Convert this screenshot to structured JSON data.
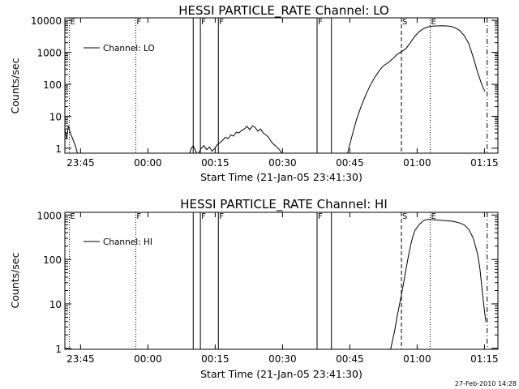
{
  "stamp": "27-Feb-2010 14:28",
  "chart_data": [
    {
      "type": "line",
      "title": "HESSI PARTICLE_RATE Channel: LO",
      "xlabel": "Start Time (21-Jan-05 23:41:30)",
      "ylabel": "Counts/sec",
      "yscale": "log",
      "ylim": [
        0.7,
        12000
      ],
      "yticks": [
        1,
        10,
        100,
        1000,
        10000
      ],
      "ytick_labels": [
        "1",
        "10",
        "100",
        "1000",
        "10000"
      ],
      "x_unit": "minutes after 23:41:30",
      "xlim": [
        0,
        96.5
      ],
      "xticks": [
        3.5,
        18.5,
        33.5,
        48.5,
        63.5,
        78.5,
        93.5
      ],
      "xtick_labels": [
        "23:45",
        "00:00",
        "00:15",
        "00:30",
        "00:45",
        "01:00",
        "01:15"
      ],
      "legend": {
        "label": "Channel: LO",
        "placement": "top-left"
      },
      "markers": [
        {
          "x": 1.0,
          "label": "E",
          "style": "dotted"
        },
        {
          "x": 15.8,
          "label": "F",
          "style": "dotted"
        },
        {
          "x": 28.6,
          "label": "",
          "style": "solid"
        },
        {
          "x": 30.2,
          "label": "F",
          "style": "solid"
        },
        {
          "x": 34.2,
          "label": "F",
          "style": "solid"
        },
        {
          "x": 56.2,
          "label": "F",
          "style": "solid"
        },
        {
          "x": 59.4,
          "label": "",
          "style": "solid"
        },
        {
          "x": 75.0,
          "label": "S",
          "style": "dashed"
        },
        {
          "x": 81.4,
          "label": "E",
          "style": "dotted"
        },
        {
          "x": 94.1,
          "label": "",
          "style": "dashdot"
        }
      ],
      "series": [
        {
          "segments": [
            {
              "x": [
                0.0,
                0.4,
                0.8,
                1.2,
                1.6,
                2.0,
                2.4,
                2.8
              ],
              "y": [
                4.0,
                2.0,
                5.0,
                3.0,
                2.2,
                1.6,
                1.1,
                0.7
              ]
            },
            {
              "x": [
                27.8,
                28.2,
                28.6,
                29.0,
                29.4
              ],
              "y": [
                0.7,
                1.0,
                1.2,
                0.9,
                0.7
              ]
            },
            {
              "x": [
                29.8,
                30.4,
                31.0,
                31.6,
                32.2,
                32.8,
                33.4,
                34.0,
                34.6,
                35.2,
                35.8,
                36.4,
                37.0,
                37.6,
                38.2,
                38.8,
                39.4,
                40.0,
                40.6,
                41.2,
                41.8,
                42.4,
                43.0,
                43.6,
                44.2,
                44.8,
                45.4,
                46.0,
                46.6,
                47.2,
                47.8,
                48.4
              ],
              "y": [
                0.7,
                1.0,
                1.2,
                0.9,
                1.1,
                0.8,
                1.0,
                1.3,
                1.5,
                1.8,
                2.2,
                2.0,
                2.6,
                2.4,
                3.2,
                3.0,
                3.6,
                4.0,
                4.8,
                3.8,
                5.0,
                4.5,
                3.4,
                4.0,
                3.0,
                2.6,
                2.2,
                1.6,
                1.3,
                1.1,
                0.9,
                0.7
              ]
            },
            {
              "x": [
                63.0,
                64.0,
                65.0,
                66.0,
                67.0,
                68.0,
                69.0,
                70.0,
                71.0,
                72.0,
                73.0,
                74.0,
                75.0,
                76.0,
                77.0,
                78.0,
                79.0,
                80.0,
                81.0,
                82.0,
                83.0,
                84.0,
                85.0,
                86.0,
                87.0,
                88.0,
                89.0,
                90.0,
                91.0,
                92.0,
                93.0,
                93.6
              ],
              "y": [
                0.7,
                2.5,
                8,
                20,
                45,
                90,
                160,
                260,
                380,
                470,
                620,
                850,
                1050,
                1300,
                2000,
                3200,
                4500,
                5600,
                6300,
                6600,
                6700,
                6800,
                6700,
                6500,
                5800,
                4800,
                3300,
                1900,
                700,
                230,
                90,
                60
              ]
            }
          ]
        }
      ]
    },
    {
      "type": "line",
      "title": "HESSI PARTICLE_RATE Channel: HI",
      "xlabel": "Start Time (21-Jan-05 23:41:30)",
      "ylabel": "Counts/sec",
      "yscale": "log",
      "ylim": [
        0.95,
        1150
      ],
      "yticks": [
        1,
        10,
        100,
        1000
      ],
      "ytick_labels": [
        "1",
        "10",
        "100",
        "1000"
      ],
      "x_unit": "minutes after 23:41:30",
      "xlim": [
        0,
        96.5
      ],
      "xticks": [
        3.5,
        18.5,
        33.5,
        48.5,
        63.5,
        78.5,
        93.5
      ],
      "xtick_labels": [
        "23:45",
        "00:00",
        "00:15",
        "00:30",
        "00:45",
        "01:00",
        "01:15"
      ],
      "legend": {
        "label": "Channel: HI",
        "placement": "top-left"
      },
      "markers": [
        {
          "x": 1.0,
          "label": "E",
          "style": "dotted"
        },
        {
          "x": 15.8,
          "label": "F",
          "style": "dotted"
        },
        {
          "x": 28.6,
          "label": "",
          "style": "solid"
        },
        {
          "x": 30.2,
          "label": "F",
          "style": "solid"
        },
        {
          "x": 34.2,
          "label": "F",
          "style": "solid"
        },
        {
          "x": 56.2,
          "label": "F",
          "style": "solid"
        },
        {
          "x": 59.4,
          "label": "",
          "style": "solid"
        },
        {
          "x": 75.0,
          "label": "S",
          "style": "dashed"
        },
        {
          "x": 81.4,
          "label": "E",
          "style": "dotted"
        },
        {
          "x": 94.1,
          "label": "",
          "style": "dashdot"
        }
      ],
      "series": [
        {
          "segments": [
            {
              "x": [
                72.6,
                73.0,
                73.5,
                74.0,
                74.5,
                75.0,
                75.5,
                76.0,
                76.5,
                77.0,
                77.5,
                78.0,
                79.0,
                80.0,
                81.0,
                82.0,
                83.0,
                84.0,
                85.0,
                86.0,
                87.0,
                88.0,
                89.0,
                90.0,
                91.0,
                92.0,
                92.5,
                93.0,
                93.5,
                93.8
              ],
              "y": [
                0.95,
                1.5,
                2.5,
                5,
                9,
                16,
                30,
                60,
                110,
                200,
                320,
                450,
                620,
                760,
                800,
                780,
                770,
                760,
                740,
                730,
                700,
                660,
                600,
                480,
                300,
                130,
                60,
                20,
                7,
                4
              ]
            }
          ]
        }
      ]
    }
  ]
}
